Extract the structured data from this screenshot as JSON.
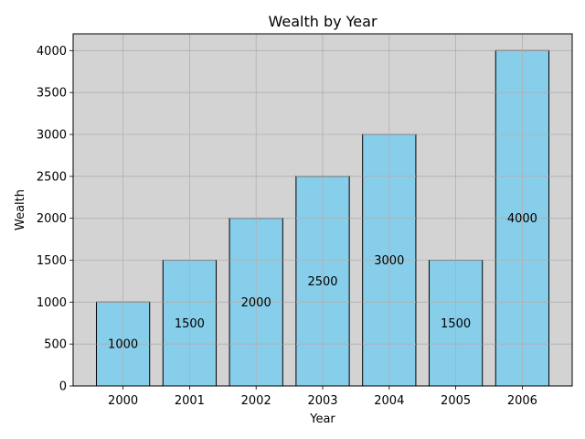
{
  "chart_data": {
    "type": "bar",
    "title": "Wealth by Year",
    "xlabel": "Year",
    "ylabel": "Wealth",
    "categories": [
      "2000",
      "2001",
      "2002",
      "2003",
      "2004",
      "2005",
      "2006"
    ],
    "values": [
      1000,
      1500,
      2000,
      2500,
      3000,
      1500,
      4000
    ],
    "data_labels": [
      "1000",
      "1500",
      "2000",
      "2500",
      "3000",
      "1500",
      "4000"
    ],
    "ylim": [
      0,
      4200
    ],
    "yticks": [
      0,
      500,
      1000,
      1500,
      2000,
      2500,
      3000,
      3500,
      4000
    ],
    "grid": true,
    "colors": {
      "bar_fill": "#87CEEB",
      "bar_edge": "#000000",
      "plot_background": "#D3D3D3",
      "grid": "#B0B0B0"
    }
  }
}
